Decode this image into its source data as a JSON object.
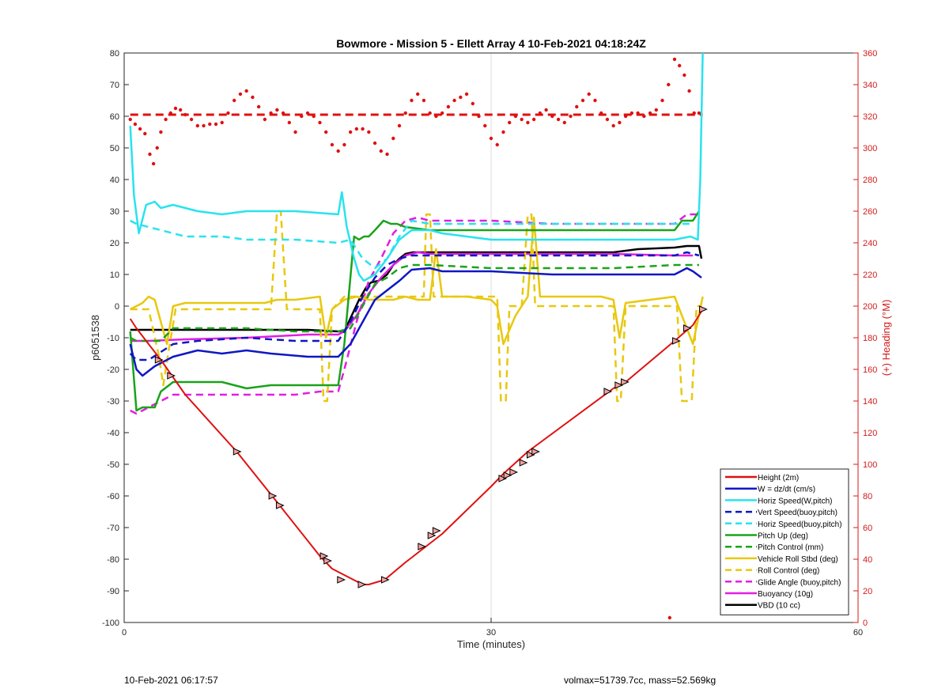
{
  "footer": {
    "timestamp": "10-Feb-2021 06:17:57",
    "summary": "volmax=51739.7cc, mass=52.569kg"
  },
  "chart_data": {
    "type": "line",
    "title": "Bowmore - Mission 5 - Ellett Array 4 10-Feb-2021 04:18:24Z",
    "xlabel": "Time (minutes)",
    "ylabel": "p6051538",
    "y2label": "(+) Heading (°M)",
    "xlim": [
      0,
      60
    ],
    "ylim": [
      -100,
      80
    ],
    "y2lim": [
      0,
      360
    ],
    "xticks": [
      0,
      30,
      60
    ],
    "yticks": [
      -100,
      -90,
      -80,
      -70,
      -60,
      -50,
      -40,
      -30,
      -20,
      -10,
      0,
      10,
      20,
      30,
      40,
      50,
      60,
      70,
      80
    ],
    "y2ticks": [
      0,
      20,
      40,
      60,
      80,
      100,
      120,
      140,
      160,
      180,
      200,
      220,
      240,
      260,
      280,
      300,
      320,
      340,
      360
    ],
    "grid": "x only",
    "legend_position": "bottom-right",
    "colors": {
      "red": "#e01010",
      "blue": "#0f17c4",
      "cyan": "#28e3ee",
      "green": "#1aa31a",
      "yellow": "#e8c80f",
      "magenta": "#e21ee2",
      "black": "#000000",
      "right_axis": "#d41a1a"
    },
    "series": [
      {
        "name": "Height (2m)",
        "axis": "left",
        "color": "red",
        "style": "solid",
        "x": [
          0.5,
          1,
          2,
          3,
          5,
          9.2,
          12.1,
          16,
          17,
          18.5,
          19,
          19.5,
          20,
          21.3,
          23,
          26,
          30,
          31,
          33,
          40,
          41,
          45,
          46.5,
          47.3
        ],
        "y": [
          -4,
          -7,
          -12,
          -17,
          -28,
          -46,
          -60,
          -79,
          -83,
          -86,
          -87,
          -88,
          -88,
          -86.5,
          -81,
          -72,
          -57,
          -53,
          -46,
          -26,
          -24,
          -11,
          -6,
          -1
        ]
      },
      {
        "name": "W = dz/dt (cm/s)",
        "axis": "left",
        "color": "blue",
        "style": "solid",
        "x": [
          0.5,
          1,
          1.5,
          2.5,
          4,
          6,
          8,
          10,
          12,
          15,
          17.5,
          18.5,
          19.5,
          20.5,
          21.5,
          22.5,
          23.5,
          25,
          26,
          27,
          30,
          35,
          40,
          45,
          46,
          46.5,
          47.2
        ],
        "y": [
          -12,
          -20,
          -22,
          -19,
          -16,
          -14,
          -15,
          -14,
          -15,
          -16,
          -16,
          -12,
          -5,
          2,
          5,
          8,
          11.5,
          12,
          11,
          11,
          11,
          10,
          10,
          10,
          12,
          11,
          9
        ]
      },
      {
        "name": "Horiz Speed(W,pitch)",
        "axis": "left",
        "color": "cyan",
        "style": "solid",
        "x": [
          0.5,
          0.8,
          1.2,
          1.8,
          2.5,
          3,
          4,
          6,
          8,
          10,
          12,
          14,
          17.5,
          17.8,
          18.2,
          18.8,
          19.2,
          19.6,
          20.5,
          21.5,
          22.5,
          23.5,
          25,
          26,
          28,
          30,
          35,
          40,
          45,
          46.3,
          46.9,
          47.1,
          47.3
        ],
        "y": [
          57,
          35,
          23,
          32,
          33,
          31,
          32,
          30,
          29,
          30,
          30,
          30,
          29,
          36,
          25,
          15,
          10,
          8,
          10,
          15,
          21,
          24,
          24,
          23,
          22,
          21,
          21,
          21,
          21,
          22,
          21,
          40,
          80
        ]
      },
      {
        "name": "Vert Speed(buoy,pitch)",
        "axis": "left",
        "color": "blue",
        "style": "dashed",
        "x": [
          0.5,
          1,
          2,
          4,
          6,
          10,
          14,
          17.5,
          18.5,
          19.5,
          20.5,
          21.5,
          22.5,
          23.5,
          25,
          30,
          35,
          40,
          45,
          46,
          47
        ],
        "y": [
          -15,
          -17,
          -17,
          -12,
          -11,
          -10,
          -11,
          -11,
          -5,
          3,
          9,
          13,
          15,
          16,
          16,
          16,
          16,
          16,
          16,
          17,
          16
        ]
      },
      {
        "name": "Horiz Speed(buoy,pitch)",
        "axis": "left",
        "color": "cyan",
        "style": "dashed",
        "x": [
          0.5,
          1,
          2,
          3,
          5,
          8,
          10,
          14,
          17.5,
          18.5,
          19.5,
          20.5,
          21.5,
          22.5,
          23.5,
          25,
          30,
          35,
          40,
          45,
          46.5
        ],
        "y": [
          27,
          26,
          25,
          24,
          22,
          22,
          21,
          21,
          20,
          21,
          15,
          12,
          15,
          22,
          27,
          26,
          26,
          26,
          26,
          26,
          26
        ]
      },
      {
        "name": "Pitch Up (deg)",
        "axis": "left",
        "color": "green",
        "style": "solid",
        "x": [
          0.5,
          1,
          1.5,
          2.5,
          3,
          4,
          6,
          8,
          10,
          12,
          14,
          17.5,
          18,
          18.4,
          18.8,
          19.2,
          19.6,
          20,
          20.5,
          21.2,
          21.8,
          22.3,
          23,
          25,
          30,
          35,
          40,
          45,
          45.6,
          46.5,
          47
        ],
        "y": [
          -8,
          -33,
          -32,
          -32,
          -27,
          -24,
          -24,
          -24,
          -26,
          -25,
          -25,
          -25,
          -12,
          5,
          22,
          21,
          22,
          22,
          24,
          27,
          26,
          26,
          25,
          24,
          24,
          24,
          24,
          24,
          27,
          27,
          30
        ]
      },
      {
        "name": "Pitch Control (mm)",
        "axis": "left",
        "color": "green",
        "style": "dashed",
        "x": [
          0.5,
          1,
          3,
          4,
          5,
          6,
          8,
          10,
          14,
          17.5,
          18.5,
          19.5,
          20.5,
          21.5,
          22.5,
          23.5,
          25,
          30,
          35,
          40,
          45,
          46,
          47
        ],
        "y": [
          -10,
          -11,
          -11,
          -7,
          -7,
          -7,
          -7,
          -7,
          -8,
          -8,
          -7,
          0,
          7,
          9,
          12,
          13,
          13,
          12,
          12,
          12,
          13,
          13,
          13
        ]
      },
      {
        "name": "Vehicle Roll Stbd (deg)",
        "axis": "left",
        "color": "yellow",
        "style": "solid",
        "x": [
          0.5,
          1,
          1.5,
          2,
          2.5,
          3,
          3.5,
          4,
          5,
          8,
          10,
          11.5,
          12.5,
          14,
          16,
          16.5,
          17,
          18,
          19,
          20,
          22,
          23,
          24,
          25,
          25.5,
          26,
          28,
          30,
          30.5,
          31,
          32,
          33,
          33.5,
          34,
          36,
          39,
          40,
          40.5,
          41,
          43,
          45,
          46.5,
          47.3
        ],
        "y": [
          -1,
          0,
          1,
          3,
          2,
          -5,
          -12,
          0,
          1,
          1,
          1,
          1,
          2,
          2,
          3,
          -10,
          -1,
          2,
          3,
          2,
          2,
          3,
          2,
          2,
          18,
          3,
          3,
          2,
          0,
          -12,
          -3,
          3,
          28,
          3,
          3,
          3,
          2,
          -10,
          1,
          2,
          3,
          -12,
          3
        ]
      },
      {
        "name": "Roll Control (deg)",
        "axis": "left",
        "color": "yellow",
        "style": "dashed",
        "x": [
          0.5,
          2,
          2.8,
          3.2,
          3.6,
          4.2,
          6,
          10,
          12,
          12.5,
          12.8,
          13.3,
          14,
          16,
          16.3,
          16.6,
          17,
          18,
          20,
          24.5,
          24.7,
          25,
          25.3,
          28,
          30.5,
          30.8,
          31.2,
          31.5,
          32.5,
          33,
          33.3,
          33.6,
          34.2,
          38,
          40,
          40.3,
          40.6,
          41,
          44,
          45.2,
          45.6,
          46.4,
          46.8,
          47.2
        ],
        "y": [
          -1,
          -1,
          -15,
          -25,
          -15,
          -1,
          -1,
          -1,
          -1,
          30,
          30,
          -1,
          -1,
          -1,
          -30,
          -30,
          -1,
          3,
          3,
          3,
          29,
          29,
          3,
          3,
          3,
          -30,
          -30,
          0,
          0,
          29,
          29,
          0,
          0,
          0,
          0,
          -30,
          -30,
          0,
          0,
          0,
          -30,
          -30,
          0,
          0
        ]
      },
      {
        "name": "Glide Angle (buoy,pitch)",
        "axis": "left",
        "color": "magenta",
        "style": "dashed",
        "x": [
          0.5,
          1,
          2,
          3,
          4,
          6,
          8,
          10,
          12,
          14,
          16,
          17.5,
          18,
          19,
          20,
          21,
          22,
          23,
          24,
          25,
          30,
          35,
          40,
          45,
          46,
          46.8
        ],
        "y": [
          -33,
          -34,
          -32,
          -30,
          -28,
          -28,
          -28,
          -28,
          -28,
          -28,
          -27,
          -27,
          -20,
          -5,
          8,
          15,
          23,
          27,
          28,
          27,
          27,
          26,
          26,
          26,
          29,
          29
        ]
      },
      {
        "name": "Buoyancy (10g)",
        "axis": "left",
        "color": "magenta",
        "style": "solid",
        "x": [
          0.5,
          2,
          5,
          10,
          15,
          17.5,
          18,
          19,
          20,
          21,
          22,
          23,
          24,
          25,
          30,
          35,
          40,
          45,
          46.5
        ],
        "y": [
          -11,
          -11,
          -10.5,
          -10,
          -9,
          -9,
          -8,
          -3,
          4,
          9,
          13,
          16,
          17,
          16.5,
          16.5,
          16.5,
          16.5,
          16,
          16
        ]
      },
      {
        "name": "VBD (10 cc)",
        "axis": "left",
        "color": "black",
        "style": "solid",
        "x": [
          0.5,
          5,
          10,
          15,
          17.5,
          18,
          18.6,
          19.2,
          19.8,
          20.2,
          20.8,
          21.5,
          22,
          22.5,
          23,
          23.6,
          25,
          30,
          35,
          40,
          41,
          42,
          45,
          46,
          47,
          47.2
        ],
        "y": [
          -7.5,
          -7.5,
          -7.5,
          -7.5,
          -8,
          -8,
          -3,
          2,
          6,
          7.5,
          8,
          10,
          13,
          15,
          16.5,
          17,
          17,
          17,
          17,
          17,
          17.5,
          18,
          18.5,
          19,
          19,
          15
        ]
      }
    ],
    "heading_dots": {
      "axis": "right",
      "color": "red",
      "x": [
        0.5,
        0.9,
        1.3,
        1.7,
        2.1,
        2.4,
        2.7,
        3.0,
        3.4,
        3.8,
        4.2,
        4.6,
        5.0,
        5.5,
        6.0,
        6.5,
        7.0,
        7.5,
        8.0,
        8.5,
        9.0,
        9.5,
        10.0,
        10.5,
        11.0,
        11.5,
        12.0,
        12.5,
        13.0,
        13.5,
        14.0,
        14.5,
        15.0,
        15.5,
        16.0,
        16.5,
        17.0,
        17.5,
        18.0,
        18.5,
        19.0,
        19.5,
        20.0,
        20.5,
        21.0,
        21.5,
        22.0,
        22.5,
        23.0,
        23.5,
        24.0,
        24.5,
        25.0,
        25.5,
        26.0,
        26.5,
        27.0,
        27.5,
        28.0,
        28.5,
        29.0,
        29.5,
        30.0,
        30.5,
        31.0,
        31.5,
        32.0,
        32.5,
        33.0,
        33.5,
        34.0,
        34.5,
        35.0,
        35.5,
        36.0,
        36.5,
        37.0,
        37.5,
        38.0,
        38.5,
        39.0,
        39.5,
        40.0,
        40.5,
        41.0,
        41.5,
        42.0,
        42.5,
        43.0,
        43.5,
        44.0,
        44.5,
        45.0,
        45.4,
        45.8,
        46.2,
        46.6,
        47.0,
        44.6
      ],
      "y": [
        318,
        315,
        312,
        309,
        296,
        290,
        300,
        310,
        318,
        322,
        325,
        324,
        321,
        318,
        314,
        314,
        315,
        315,
        316,
        322,
        330,
        334,
        336,
        332,
        326,
        318,
        322,
        324,
        322,
        316,
        310,
        320,
        322,
        320,
        316,
        310,
        302,
        298,
        302,
        310,
        312,
        312,
        310,
        303,
        298,
        296,
        306,
        314,
        322,
        330,
        334,
        330,
        322,
        320,
        322,
        326,
        330,
        332,
        334,
        328,
        320,
        314,
        306,
        302,
        310,
        316,
        320,
        318,
        316,
        318,
        322,
        324,
        320,
        318,
        316,
        320,
        326,
        330,
        334,
        330,
        322,
        318,
        314,
        316,
        320,
        322,
        322,
        320,
        322,
        324,
        330,
        340,
        356,
        352,
        346,
        336,
        322,
        322,
        3
      ]
    },
    "heading_reference": {
      "axis": "right",
      "color": "red",
      "style": "dashed",
      "value": 321,
      "x": [
        0.5,
        47.3
      ]
    },
    "triangle_markers": {
      "on_series": "Height (2m)",
      "x": [
        2.8,
        3.8,
        9.2,
        12.1,
        12.7,
        16.3,
        16.6,
        17.7,
        19.4,
        21.3,
        24.3,
        25.1,
        25.5,
        30.9,
        31.3,
        31.8,
        32.6,
        33.2,
        33.6,
        39.5,
        40.4,
        40.9,
        45.1,
        46.0,
        47.3
      ],
      "y": [
        -17,
        -22,
        -46,
        -60,
        -63,
        -79,
        -80.5,
        -86.5,
        -88,
        -86.5,
        -76,
        -72.5,
        -71,
        -54.5,
        -53.5,
        -52.5,
        -49.5,
        -47,
        -46,
        -27,
        -25,
        -24,
        -11,
        -7,
        -1
      ]
    }
  }
}
